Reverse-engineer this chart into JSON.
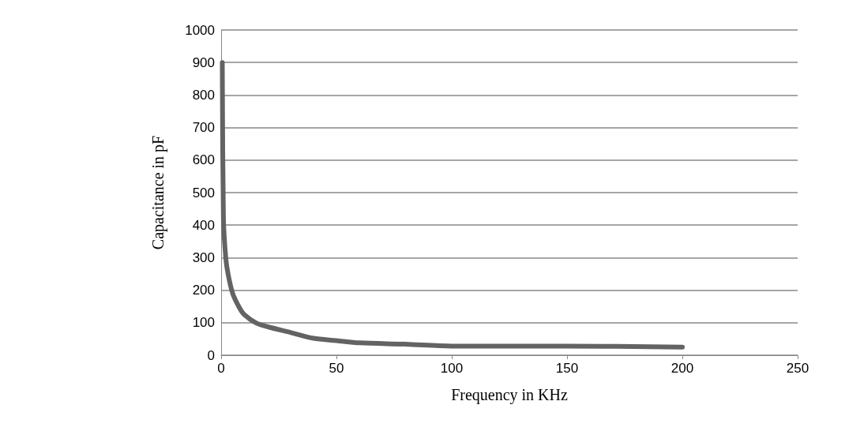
{
  "chart_data": {
    "type": "line",
    "xlabel": "Frequency in KHz",
    "ylabel": "Capacitance in pF",
    "series": [
      {
        "color": "#636363",
        "x": [
          0.5,
          1,
          2,
          3,
          5,
          8,
          10,
          15,
          20,
          30,
          40,
          50,
          60,
          80,
          100,
          150,
          200
        ],
        "values": [
          900,
          420,
          300,
          250,
          190,
          145,
          125,
          100,
          88,
          70,
          52,
          45,
          38,
          34,
          28,
          28,
          25
        ]
      }
    ],
    "xlim": [
      0,
      250
    ],
    "xticks": [
      0,
      50,
      100,
      150,
      200,
      250
    ],
    "ylim": [
      0,
      1000
    ],
    "yticks": [
      0,
      100,
      200,
      300,
      400,
      500,
      600,
      700,
      800,
      900,
      1000
    ],
    "grid": "y",
    "marker": "none",
    "line_style": "solid"
  }
}
